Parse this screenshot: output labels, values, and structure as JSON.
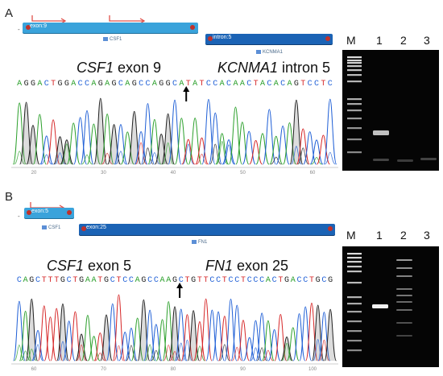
{
  "panel_a": {
    "label": "A",
    "exon_left_label": "exon:9",
    "exon_right_label": "intron:5",
    "gene_left": "CSF1",
    "gene_right": "KCNMA1",
    "heading_left_gene": "CSF1",
    "heading_left_suffix": " exon 9",
    "heading_right_gene": "KCNMA1",
    "heading_right_suffix": " intron 5",
    "sequence": "AGGACTGGACCAGAGCAGCCAGGCATATCCACAACTACACAGTCCTC",
    "ticks": [
      "20",
      "30",
      "40",
      "50",
      "60"
    ],
    "gel_lanes": [
      "M",
      "1",
      "2",
      "3"
    ]
  },
  "panel_b": {
    "label": "B",
    "exon_left_label": "exon:5",
    "exon_right_label": "exon:25",
    "gene_left": "CSF1",
    "gene_right": "FN1",
    "heading_left_gene": "CSF1",
    "heading_left_suffix": " exon 5",
    "heading_right_gene": "FN1",
    "heading_right_suffix": " exon 25",
    "sequence": "CAGCTTTGCTGAATGCTCCAGCCAAGCTGTTCCTCCTCCCACTGACCTGCG",
    "ticks": [
      "60",
      "70",
      "80",
      "90",
      "100"
    ],
    "gel_lanes": [
      "M",
      "1",
      "2",
      "3"
    ]
  },
  "base_colors": {
    "A": "#2ca02c",
    "C": "#1f5fd6",
    "G": "#222222",
    "T": "#d62728"
  }
}
